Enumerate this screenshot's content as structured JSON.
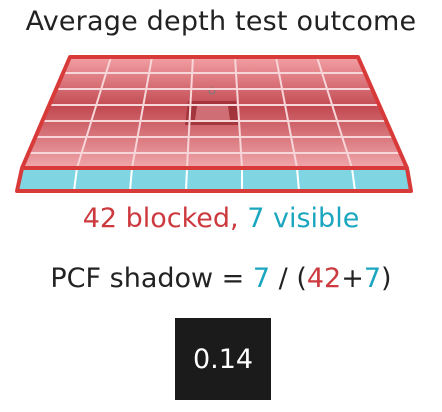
{
  "title": "Average depth test outcome",
  "counts": {
    "blocked_number": "42",
    "blocked_text": " blocked, ",
    "visible_number": "7",
    "visible_text": " visible"
  },
  "formula": {
    "prefix": "PCF shadow = ",
    "visible": "7",
    "mid": " / (",
    "blocked": "42",
    "plus": "+",
    "visible2": "7",
    "suffix": ")"
  },
  "result": "0.14",
  "colors": {
    "blocked": "#cc3a3f",
    "visible": "#1ba6bf",
    "border": "#d83a3a",
    "result_bg": "#1b1b1b"
  }
}
